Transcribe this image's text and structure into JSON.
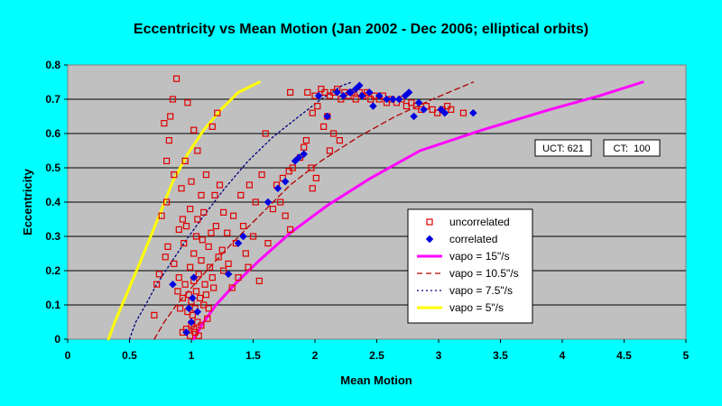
{
  "chart_data": {
    "type": "scatter",
    "title": "Eccentricity vs Mean Motion (Jan 2002 - Dec 2006; elliptical orbits)",
    "xlabel": "Mean Motion",
    "ylabel": "Eccentricity",
    "xlim": [
      0,
      5
    ],
    "ylim": [
      0,
      0.8
    ],
    "x_ticks": [
      "0",
      "0.5",
      "1",
      "1.5",
      "2",
      "2.5",
      "3",
      "3.5",
      "4",
      "4.5",
      "5"
    ],
    "y_ticks": [
      "0",
      "0.1",
      "0.2",
      "0.3",
      "0.4",
      "0.5",
      "0.6",
      "0.7",
      "0.8"
    ],
    "grid": "horizontal",
    "legend": "center-right",
    "annotations": {
      "uct": "UCT: 621",
      "ct": "CT:  100"
    },
    "series": [
      {
        "name": "uncorrelated",
        "kind": "points",
        "marker": "open-square",
        "color": "#E00000",
        "points": [
          [
            0.88,
            0.76
          ],
          [
            0.85,
            0.7
          ],
          [
            0.83,
            0.65
          ],
          [
            0.78,
            0.63
          ],
          [
            0.82,
            0.58
          ],
          [
            0.97,
            0.69
          ],
          [
            1.02,
            0.61
          ],
          [
            1.05,
            0.55
          ],
          [
            1.17,
            0.62
          ],
          [
            1.21,
            0.66
          ],
          [
            0.8,
            0.52
          ],
          [
            0.86,
            0.48
          ],
          [
            0.92,
            0.44
          ],
          [
            0.95,
            0.52
          ],
          [
            1.0,
            0.46
          ],
          [
            1.08,
            0.42
          ],
          [
            1.12,
            0.48
          ],
          [
            0.8,
            0.4
          ],
          [
            0.76,
            0.36
          ],
          [
            0.9,
            0.32
          ],
          [
            0.93,
            0.35
          ],
          [
            1.04,
            0.3
          ],
          [
            1.1,
            0.37
          ],
          [
            1.14,
            0.27
          ],
          [
            1.2,
            0.33
          ],
          [
            1.19,
            0.42
          ],
          [
            1.23,
            0.45
          ],
          [
            1.26,
            0.37
          ],
          [
            1.29,
            0.31
          ],
          [
            1.34,
            0.36
          ],
          [
            1.4,
            0.42
          ],
          [
            1.42,
            0.33
          ],
          [
            1.47,
            0.45
          ],
          [
            1.52,
            0.4
          ],
          [
            1.57,
            0.48
          ],
          [
            1.6,
            0.6
          ],
          [
            1.69,
            0.45
          ],
          [
            1.74,
            0.47
          ],
          [
            1.79,
            0.49
          ],
          [
            1.8,
            0.32
          ],
          [
            0.81,
            0.27
          ],
          [
            0.86,
            0.22
          ],
          [
            0.9,
            0.18
          ],
          [
            0.93,
            0.12
          ],
          [
            0.95,
            0.16
          ],
          [
            0.97,
            0.08
          ],
          [
            0.98,
            0.13
          ],
          [
            0.99,
            0.21
          ],
          [
            1.0,
            0.04
          ],
          [
            1.0,
            0.11
          ],
          [
            1.01,
            0.07
          ],
          [
            1.02,
            0.17
          ],
          [
            1.02,
            0.25
          ],
          [
            1.03,
            0.09
          ],
          [
            1.04,
            0.14
          ],
          [
            1.05,
            0.05
          ],
          [
            1.06,
            0.19
          ],
          [
            1.07,
            0.12
          ],
          [
            1.08,
            0.23
          ],
          [
            1.1,
            0.1
          ],
          [
            1.11,
            0.16
          ],
          [
            1.13,
            0.06
          ],
          [
            1.15,
            0.21
          ],
          [
            1.18,
            0.15
          ],
          [
            1.22,
            0.24
          ],
          [
            0.93,
            0.02
          ],
          [
            0.96,
            0.03
          ],
          [
            0.99,
            0.01
          ],
          [
            1.03,
            0.02
          ],
          [
            1.06,
            0.01
          ],
          [
            0.7,
            0.07
          ],
          [
            0.72,
            0.16
          ],
          [
            0.74,
            0.19
          ],
          [
            0.79,
            0.24
          ],
          [
            0.94,
            0.28
          ],
          [
            0.96,
            0.33
          ],
          [
            0.99,
            0.38
          ],
          [
            1.05,
            0.35
          ],
          [
            1.09,
            0.29
          ],
          [
            1.16,
            0.31
          ],
          [
            1.25,
            0.26
          ],
          [
            1.3,
            0.22
          ],
          [
            1.36,
            0.28
          ],
          [
            1.44,
            0.25
          ],
          [
            1.38,
            0.18
          ],
          [
            1.5,
            0.3
          ],
          [
            1.62,
            0.28
          ],
          [
            1.72,
            0.4
          ],
          [
            1.76,
            0.36
          ],
          [
            1.66,
            0.38
          ],
          [
            1.82,
            0.5
          ],
          [
            1.88,
            0.53
          ],
          [
            1.91,
            0.56
          ],
          [
            1.94,
            0.72
          ],
          [
            2.0,
            0.71
          ],
          [
            2.05,
            0.73
          ],
          [
            2.08,
            0.72
          ],
          [
            2.12,
            0.71
          ],
          [
            2.15,
            0.72
          ],
          [
            2.18,
            0.73
          ],
          [
            2.21,
            0.7
          ],
          [
            2.24,
            0.72
          ],
          [
            2.27,
            0.71
          ],
          [
            2.3,
            0.72
          ],
          [
            2.33,
            0.7
          ],
          [
            2.36,
            0.72
          ],
          [
            2.39,
            0.71
          ],
          [
            2.42,
            0.72
          ],
          [
            2.45,
            0.7
          ],
          [
            2.48,
            0.71
          ],
          [
            2.52,
            0.7
          ],
          [
            2.55,
            0.71
          ],
          [
            2.58,
            0.69
          ],
          [
            2.62,
            0.7
          ],
          [
            2.66,
            0.69
          ],
          [
            2.7,
            0.7
          ],
          [
            2.74,
            0.68
          ],
          [
            2.78,
            0.69
          ],
          [
            2.82,
            0.68
          ],
          [
            2.86,
            0.67
          ],
          [
            2.9,
            0.68
          ],
          [
            2.95,
            0.67
          ],
          [
            2.99,
            0.66
          ],
          [
            3.03,
            0.67
          ],
          [
            3.07,
            0.68
          ],
          [
            3.1,
            0.67
          ],
          [
            3.2,
            0.66
          ],
          [
            1.8,
            0.72
          ],
          [
            2.02,
            0.68
          ],
          [
            1.98,
            0.66
          ],
          [
            2.1,
            0.65
          ],
          [
            2.15,
            0.6
          ],
          [
            2.2,
            0.58
          ],
          [
            1.02,
            0.03
          ],
          [
            1.08,
            0.04
          ],
          [
            0.91,
            0.09
          ],
          [
            0.89,
            0.14
          ],
          [
            1.12,
            0.13
          ],
          [
            1.14,
            0.09
          ],
          [
            1.17,
            0.18
          ],
          [
            1.26,
            0.2
          ],
          [
            1.33,
            0.15
          ],
          [
            1.46,
            0.21
          ],
          [
            1.55,
            0.17
          ],
          [
            1.98,
            0.44
          ],
          [
            2.01,
            0.47
          ],
          [
            1.97,
            0.5
          ],
          [
            1.93,
            0.58
          ],
          [
            2.07,
            0.62
          ],
          [
            2.12,
            0.55
          ]
        ]
      },
      {
        "name": "correlated",
        "kind": "points",
        "marker": "diamond",
        "color": "#0000E0",
        "points": [
          [
            0.96,
            0.02
          ],
          [
            0.98,
            0.09
          ],
          [
            1.0,
            0.05
          ],
          [
            1.01,
            0.12
          ],
          [
            1.02,
            0.18
          ],
          [
            1.05,
            0.08
          ],
          [
            1.3,
            0.19
          ],
          [
            0.85,
            0.16
          ],
          [
            1.38,
            0.28
          ],
          [
            1.42,
            0.3
          ],
          [
            1.62,
            0.4
          ],
          [
            1.7,
            0.44
          ],
          [
            1.76,
            0.46
          ],
          [
            1.84,
            0.52
          ],
          [
            1.87,
            0.53
          ],
          [
            1.91,
            0.54
          ],
          [
            2.03,
            0.71
          ],
          [
            2.1,
            0.65
          ],
          [
            2.18,
            0.72
          ],
          [
            2.23,
            0.71
          ],
          [
            2.28,
            0.72
          ],
          [
            2.33,
            0.73
          ],
          [
            2.38,
            0.71
          ],
          [
            2.44,
            0.72
          ],
          [
            2.47,
            0.68
          ],
          [
            2.52,
            0.71
          ],
          [
            2.58,
            0.7
          ],
          [
            2.63,
            0.7
          ],
          [
            2.68,
            0.7
          ],
          [
            2.73,
            0.71
          ],
          [
            2.76,
            0.72
          ],
          [
            2.8,
            0.65
          ],
          [
            2.84,
            0.69
          ],
          [
            2.88,
            0.67
          ],
          [
            3.02,
            0.67
          ],
          [
            3.05,
            0.66
          ],
          [
            3.28,
            0.66
          ],
          [
            2.29,
            0.72
          ],
          [
            2.36,
            0.74
          ]
        ]
      },
      {
        "name": "vapo = 15\"/s",
        "kind": "curve",
        "style": "solid-thick",
        "color": "#FF00FF",
        "points": [
          [
            1.02,
            0.0
          ],
          [
            1.1,
            0.05
          ],
          [
            1.2,
            0.1
          ],
          [
            1.35,
            0.16
          ],
          [
            1.55,
            0.23
          ],
          [
            1.8,
            0.31
          ],
          [
            2.1,
            0.39
          ],
          [
            2.45,
            0.47
          ],
          [
            2.85,
            0.55
          ],
          [
            3.35,
            0.61
          ],
          [
            3.9,
            0.67
          ],
          [
            4.3,
            0.71
          ],
          [
            4.65,
            0.75
          ]
        ]
      },
      {
        "name": "vapo = 10.5\"/s",
        "kind": "curve",
        "style": "dashed",
        "color": "#B00000",
        "points": [
          [
            0.7,
            0.0
          ],
          [
            0.78,
            0.05
          ],
          [
            0.88,
            0.1
          ],
          [
            1.0,
            0.15
          ],
          [
            1.15,
            0.21
          ],
          [
            1.33,
            0.28
          ],
          [
            1.55,
            0.36
          ],
          [
            1.8,
            0.45
          ],
          [
            2.05,
            0.52
          ],
          [
            2.35,
            0.59
          ],
          [
            2.65,
            0.65
          ],
          [
            2.95,
            0.7
          ],
          [
            3.28,
            0.75
          ]
        ]
      },
      {
        "name": "vapo = 7.5\"/s",
        "kind": "curve",
        "style": "dotted",
        "color": "#000080",
        "points": [
          [
            0.5,
            0.0
          ],
          [
            0.55,
            0.05
          ],
          [
            0.63,
            0.1
          ],
          [
            0.72,
            0.16
          ],
          [
            0.83,
            0.22
          ],
          [
            0.96,
            0.29
          ],
          [
            1.1,
            0.36
          ],
          [
            1.27,
            0.44
          ],
          [
            1.46,
            0.52
          ],
          [
            1.66,
            0.59
          ],
          [
            1.87,
            0.65
          ],
          [
            2.05,
            0.7
          ],
          [
            2.22,
            0.74
          ],
          [
            2.3,
            0.75
          ]
        ]
      },
      {
        "name": "vapo = 5\"/s",
        "kind": "curve",
        "style": "solid-thick",
        "color": "#FFFF00",
        "points": [
          [
            0.33,
            0.0
          ],
          [
            0.38,
            0.05
          ],
          [
            0.44,
            0.1
          ],
          [
            0.51,
            0.16
          ],
          [
            0.58,
            0.22
          ],
          [
            0.66,
            0.29
          ],
          [
            0.75,
            0.37
          ],
          [
            0.85,
            0.46
          ],
          [
            0.97,
            0.54
          ],
          [
            1.1,
            0.61
          ],
          [
            1.24,
            0.67
          ],
          [
            1.38,
            0.72
          ],
          [
            1.55,
            0.75
          ]
        ]
      }
    ]
  }
}
